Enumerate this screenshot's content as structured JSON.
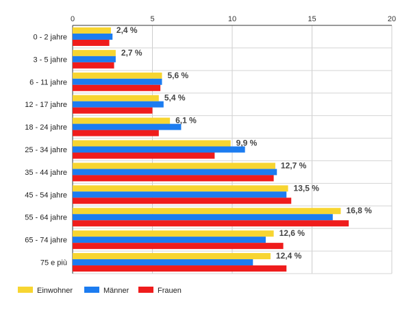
{
  "chart_data": {
    "type": "bar",
    "orientation": "horizontal",
    "categories": [
      "0 - 2 jahre",
      "3 - 5 jahre",
      "6 - 11 jahre",
      "12 - 17 jahre",
      "18 - 24 jahre",
      "25 - 34 jahre",
      "35 - 44 jahre",
      "45 - 54 jahre",
      "55 - 64 jahre",
      "65 - 74 jahre",
      "75 e più"
    ],
    "series": [
      {
        "name": "Einwohner",
        "color": "#f7d531",
        "values": [
          2.4,
          2.7,
          5.6,
          5.4,
          6.1,
          9.9,
          12.7,
          13.5,
          16.8,
          12.6,
          12.4
        ]
      },
      {
        "name": "Männer",
        "color": "#1c7cf0",
        "values": [
          2.5,
          2.7,
          5.6,
          5.7,
          6.8,
          10.8,
          12.8,
          13.4,
          16.3,
          12.1,
          11.3
        ]
      },
      {
        "name": "Frauen",
        "color": "#ef1c1c",
        "values": [
          2.3,
          2.6,
          5.5,
          5.0,
          5.4,
          8.9,
          12.6,
          13.7,
          17.3,
          13.2,
          13.4
        ]
      }
    ],
    "data_labels": [
      "2,4 %",
      "2,7 %",
      "5,6 %",
      "5,4 %",
      "6,1 %",
      "9,9 %",
      "12,7 %",
      "13,5 %",
      "16,8 %",
      "12,6 %",
      "12,4 %"
    ],
    "x_ticks": [
      "0",
      "5",
      "10",
      "15",
      "20"
    ],
    "xlim": [
      0,
      20
    ],
    "grid": true,
    "legend_position": "bottom-left",
    "title": "",
    "xlabel": "",
    "ylabel": ""
  }
}
